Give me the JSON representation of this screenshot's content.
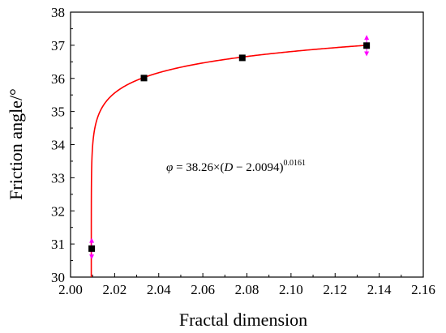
{
  "chart_data": {
    "type": "scatter",
    "xlabel": "Fractal dimension",
    "ylabel": "Friction angle/°",
    "xlim": [
      2.0,
      2.16
    ],
    "ylim": [
      30,
      38
    ],
    "x_ticks": [
      "2.00",
      "2.02",
      "2.04",
      "2.06",
      "2.08",
      "2.10",
      "2.12",
      "2.14",
      "2.16"
    ],
    "y_ticks": [
      "30",
      "31",
      "32",
      "33",
      "34",
      "35",
      "36",
      "37",
      "38"
    ],
    "points": [
      {
        "x": 2.0096,
        "y": 30.86,
        "error": 0.25
      },
      {
        "x": 2.0333,
        "y": 36.01,
        "error": 0
      },
      {
        "x": 2.0779,
        "y": 36.62,
        "error": 0
      },
      {
        "x": 2.1343,
        "y": 36.99,
        "error": 0.25
      }
    ],
    "fit": {
      "a": 38.26,
      "d0": 2.0094,
      "b": 0.0161,
      "x_range": [
        2.0094,
        2.1343
      ]
    },
    "equation": {
      "phi": "φ",
      "text": " = 38.26×(",
      "var": "D",
      "rest": " − 2.0094)",
      "exponent": "0.0161"
    },
    "colors": {
      "fit_line": "#ff0000",
      "marker": "#000000",
      "error_bar": "#ff00ff"
    },
    "grid": false
  }
}
